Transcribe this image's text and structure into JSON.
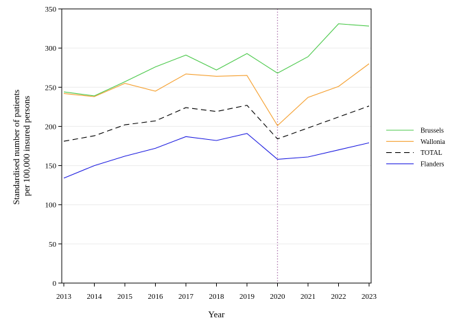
{
  "chart_data": {
    "type": "line",
    "title": "",
    "xlabel": "Year",
    "ylabel_lines": [
      "Standardised number of patients",
      "per 100,000 insured persons"
    ],
    "x": [
      "2013",
      "2014",
      "2015",
      "2016",
      "2017",
      "2018",
      "2019",
      "2020",
      "2021",
      "2022",
      "2023"
    ],
    "xlim": [
      2013,
      2023
    ],
    "ylim": [
      0,
      350
    ],
    "yticks": [
      "0",
      "50",
      "100",
      "150",
      "200",
      "250",
      "300",
      "350"
    ],
    "grid": "horizontal",
    "legend_position": "right",
    "reference_line": {
      "x": 2020,
      "color": "#b07ab0",
      "style": "dotted"
    },
    "series": [
      {
        "name": "Brussels",
        "color": "#4cc94c",
        "dash": "solid",
        "values": [
          244,
          239,
          257,
          276,
          291,
          272,
          293,
          268,
          289,
          331,
          328
        ]
      },
      {
        "name": "Wallonia",
        "color": "#f5a030",
        "dash": "solid",
        "values": [
          242,
          238,
          255,
          245,
          267,
          264,
          265,
          201,
          237,
          251,
          280
        ]
      },
      {
        "name": "TOTAL",
        "color": "#000000",
        "dash": "dashed",
        "values": [
          181,
          188,
          202,
          207,
          224,
          219,
          227,
          184,
          198,
          212,
          226
        ]
      },
      {
        "name": "Flanders",
        "color": "#2020e0",
        "dash": "solid",
        "values": [
          134,
          150,
          162,
          172,
          187,
          182,
          191,
          158,
          161,
          170,
          179
        ]
      }
    ]
  }
}
